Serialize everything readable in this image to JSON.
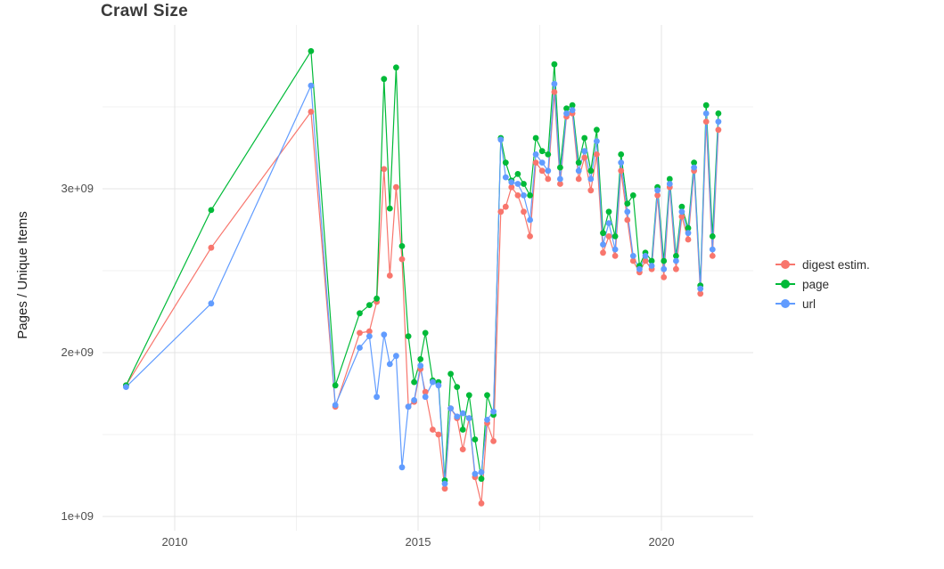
{
  "title": "Crawl Size",
  "axes": {
    "y_label": "Pages / Unique Items",
    "y_ticks": [
      {
        "value": 1.0,
        "label": "1e+09"
      },
      {
        "value": 2.0,
        "label": "2e+09"
      },
      {
        "value": 3.0,
        "label": "3e+09"
      }
    ],
    "x_ticks": [
      {
        "value": 2010,
        "label": "2010"
      },
      {
        "value": 2015,
        "label": "2015"
      },
      {
        "value": 2020,
        "label": "2020"
      }
    ]
  },
  "legend": {
    "position": "right",
    "items": [
      {
        "label": "digest estim.",
        "color": "#F8766D"
      },
      {
        "label": "page",
        "color": "#00BA38"
      },
      {
        "label": "url",
        "color": "#619CFF"
      }
    ]
  },
  "chart_data": {
    "type": "line",
    "title": "Crawl Size",
    "xlabel": "",
    "ylabel": "Pages / Unique Items",
    "x_unit": "year (decimal, monthly crawls)",
    "value_unit": "items x 1e9 (axis shows 1e+09 .. 3e+09)",
    "xlim": [
      2008.5,
      2021.9
    ],
    "ylim": [
      0.95,
      4.0
    ],
    "grid": true,
    "legend_position": "right",
    "marker": "point",
    "x": [
      2009.0,
      2010.75,
      2012.8,
      2013.3,
      2013.8,
      2014.0,
      2014.15,
      2014.3,
      2014.42,
      2014.55,
      2014.67,
      2014.8,
      2014.92,
      2015.05,
      2015.15,
      2015.3,
      2015.42,
      2015.55,
      2015.67,
      2015.8,
      2015.92,
      2016.05,
      2016.17,
      2016.3,
      2016.42,
      2016.55,
      2016.7,
      2016.8,
      2016.92,
      2017.05,
      2017.17,
      2017.3,
      2017.42,
      2017.55,
      2017.67,
      2017.8,
      2017.92,
      2018.05,
      2018.17,
      2018.3,
      2018.42,
      2018.55,
      2018.67,
      2018.8,
      2018.92,
      2019.05,
      2019.17,
      2019.3,
      2019.42,
      2019.55,
      2019.67,
      2019.8,
      2019.92,
      2020.05,
      2020.17,
      2020.3,
      2020.42,
      2020.55,
      2020.67,
      2020.8,
      2020.92,
      2021.05,
      2021.17
    ],
    "series": [
      {
        "name": "digest estim.",
        "color": "#F8766D",
        "values": [
          1.8,
          2.64,
          3.47,
          1.67,
          2.12,
          2.13,
          2.31,
          3.12,
          2.47,
          3.01,
          2.57,
          1.67,
          1.7,
          1.9,
          1.76,
          1.53,
          1.5,
          1.17,
          1.66,
          1.6,
          1.41,
          1.6,
          1.24,
          1.08,
          1.57,
          1.46,
          2.86,
          2.89,
          3.01,
          2.96,
          2.86,
          2.71,
          3.16,
          3.11,
          3.06,
          3.59,
          3.03,
          3.44,
          3.46,
          3.06,
          3.19,
          2.99,
          3.21,
          2.61,
          2.71,
          2.59,
          3.11,
          2.81,
          2.56,
          2.49,
          2.56,
          2.51,
          2.96,
          2.46,
          3.01,
          2.51,
          2.83,
          2.69,
          3.11,
          2.36,
          3.41,
          2.59,
          3.36
        ]
      },
      {
        "name": "page",
        "color": "#00BA38",
        "values": [
          1.8,
          2.87,
          3.84,
          1.8,
          2.24,
          2.29,
          2.33,
          3.67,
          2.88,
          3.74,
          2.65,
          2.1,
          1.82,
          1.96,
          2.12,
          1.83,
          1.82,
          1.22,
          1.87,
          1.79,
          1.53,
          1.74,
          1.47,
          1.23,
          1.74,
          1.62,
          3.31,
          3.16,
          3.05,
          3.09,
          3.03,
          2.96,
          3.31,
          3.23,
          3.21,
          3.76,
          3.13,
          3.49,
          3.51,
          3.16,
          3.31,
          3.11,
          3.36,
          2.73,
          2.86,
          2.71,
          3.21,
          2.91,
          2.96,
          2.53,
          2.61,
          2.56,
          3.01,
          2.56,
          3.06,
          2.59,
          2.89,
          2.76,
          3.16,
          2.41,
          3.51,
          2.71,
          3.46
        ]
      },
      {
        "name": "url",
        "color": "#619CFF",
        "values": [
          1.79,
          2.3,
          3.63,
          1.68,
          2.03,
          2.1,
          1.73,
          2.11,
          1.93,
          1.98,
          1.3,
          1.67,
          1.71,
          1.92,
          1.73,
          1.82,
          1.8,
          1.2,
          1.66,
          1.61,
          1.63,
          1.6,
          1.26,
          1.27,
          1.59,
          1.64,
          3.3,
          3.07,
          3.04,
          3.03,
          2.96,
          2.81,
          3.21,
          3.16,
          3.11,
          3.64,
          3.06,
          3.46,
          3.48,
          3.11,
          3.23,
          3.06,
          3.29,
          2.66,
          2.79,
          2.63,
          3.16,
          2.86,
          2.59,
          2.51,
          2.59,
          2.53,
          2.99,
          2.51,
          3.03,
          2.56,
          2.86,
          2.73,
          3.13,
          2.39,
          3.46,
          2.63,
          3.41
        ]
      }
    ]
  },
  "style": {
    "grid_major_color": "#e4e4e4",
    "grid_minor_color": "#f1f1f1",
    "background": "#ffffff"
  }
}
